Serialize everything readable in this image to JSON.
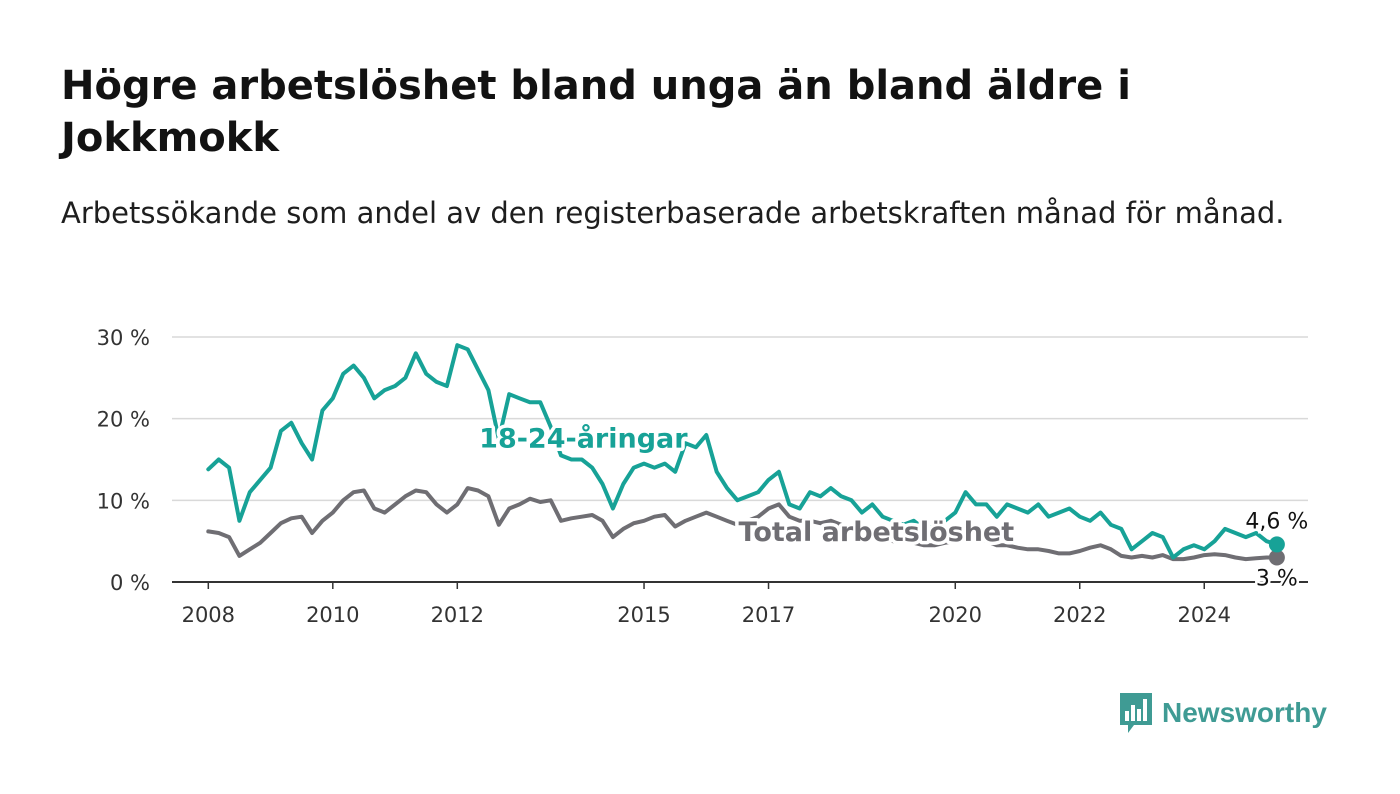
{
  "title": "Högre arbetslöshet bland unga än bland äldre i Jokkmokk",
  "subtitle": "Arbetssökande som andel av den registerbaserade arbetskraften månad för månad.",
  "brand": {
    "name": "Newsworthy",
    "color": "#3f9b94",
    "icon": "bar-chart-speech-bubble-icon"
  },
  "colors": {
    "youth": "#17a297",
    "total": "#6f6e73",
    "grid": "#d9d9d9",
    "axis": "#333333"
  },
  "chart_data": {
    "type": "line",
    "title": "Högre arbetslöshet bland unga än bland äldre i Jokkmokk",
    "subtitle": "Arbetssökande som andel av den registerbaserade arbetskraften månad för månad.",
    "xlabel": "",
    "ylabel": "",
    "x_ticks": [
      "2008",
      "2010",
      "2012",
      "2015",
      "2017",
      "2020",
      "2022",
      "2024"
    ],
    "y_ticks": [
      "0 %",
      "10 %",
      "20 %",
      "30 %"
    ],
    "ylim": [
      0,
      30
    ],
    "xlim": [
      "2007-06",
      "2025-09"
    ],
    "grid": true,
    "legend": "direct-labels",
    "series": [
      {
        "name": "18-24-åringar",
        "end_label": "4,6 %",
        "points": [
          [
            "2008-01",
            13.8
          ],
          [
            "2008-03",
            15.0
          ],
          [
            "2008-05",
            14.0
          ],
          [
            "2008-07",
            7.5
          ],
          [
            "2008-09",
            11.0
          ],
          [
            "2008-11",
            12.5
          ],
          [
            "2009-01",
            14.0
          ],
          [
            "2009-03",
            18.5
          ],
          [
            "2009-05",
            19.5
          ],
          [
            "2009-07",
            17.0
          ],
          [
            "2009-09",
            15.0
          ],
          [
            "2009-11",
            21.0
          ],
          [
            "2010-01",
            22.5
          ],
          [
            "2010-03",
            25.5
          ],
          [
            "2010-05",
            26.5
          ],
          [
            "2010-07",
            25.0
          ],
          [
            "2010-09",
            22.5
          ],
          [
            "2010-11",
            23.5
          ],
          [
            "2011-01",
            24.0
          ],
          [
            "2011-03",
            25.0
          ],
          [
            "2011-05",
            28.0
          ],
          [
            "2011-07",
            25.5
          ],
          [
            "2011-09",
            24.5
          ],
          [
            "2011-11",
            24.0
          ],
          [
            "2012-01",
            29.0
          ],
          [
            "2012-03",
            28.5
          ],
          [
            "2012-05",
            26.0
          ],
          [
            "2012-07",
            23.5
          ],
          [
            "2012-09",
            17.5
          ],
          [
            "2012-11",
            23.0
          ],
          [
            "2013-01",
            22.5
          ],
          [
            "2013-03",
            22.0
          ],
          [
            "2013-05",
            22.0
          ],
          [
            "2013-07",
            19.0
          ],
          [
            "2013-09",
            15.5
          ],
          [
            "2013-11",
            15.0
          ],
          [
            "2014-01",
            15.0
          ],
          [
            "2014-03",
            14.0
          ],
          [
            "2014-05",
            12.0
          ],
          [
            "2014-07",
            9.0
          ],
          [
            "2014-09",
            12.0
          ],
          [
            "2014-11",
            14.0
          ],
          [
            "2015-01",
            14.5
          ],
          [
            "2015-03",
            14.0
          ],
          [
            "2015-05",
            14.5
          ],
          [
            "2015-07",
            13.5
          ],
          [
            "2015-09",
            17.0
          ],
          [
            "2015-11",
            16.5
          ],
          [
            "2016-01",
            18.0
          ],
          [
            "2016-03",
            13.5
          ],
          [
            "2016-05",
            11.5
          ],
          [
            "2016-07",
            10.0
          ],
          [
            "2016-09",
            10.5
          ],
          [
            "2016-11",
            11.0
          ],
          [
            "2017-01",
            12.5
          ],
          [
            "2017-03",
            13.5
          ],
          [
            "2017-05",
            9.5
          ],
          [
            "2017-07",
            9.0
          ],
          [
            "2017-09",
            11.0
          ],
          [
            "2017-11",
            10.5
          ],
          [
            "2018-01",
            11.5
          ],
          [
            "2018-03",
            10.5
          ],
          [
            "2018-05",
            10.0
          ],
          [
            "2018-07",
            8.5
          ],
          [
            "2018-09",
            9.5
          ],
          [
            "2018-11",
            8.0
          ],
          [
            "2019-01",
            7.5
          ],
          [
            "2019-03",
            7.0
          ],
          [
            "2019-05",
            7.5
          ],
          [
            "2019-07",
            6.5
          ],
          [
            "2019-09",
            6.8
          ],
          [
            "2019-11",
            7.5
          ],
          [
            "2020-01",
            8.5
          ],
          [
            "2020-03",
            11.0
          ],
          [
            "2020-05",
            9.5
          ],
          [
            "2020-07",
            9.5
          ],
          [
            "2020-09",
            8.0
          ],
          [
            "2020-11",
            9.5
          ],
          [
            "2021-01",
            9.0
          ],
          [
            "2021-03",
            8.5
          ],
          [
            "2021-05",
            9.5
          ],
          [
            "2021-07",
            8.0
          ],
          [
            "2021-09",
            8.5
          ],
          [
            "2021-11",
            9.0
          ],
          [
            "2022-01",
            8.0
          ],
          [
            "2022-03",
            7.5
          ],
          [
            "2022-05",
            8.5
          ],
          [
            "2022-07",
            7.0
          ],
          [
            "2022-09",
            6.5
          ],
          [
            "2022-11",
            4.0
          ],
          [
            "2023-01",
            5.0
          ],
          [
            "2023-03",
            6.0
          ],
          [
            "2023-05",
            5.5
          ],
          [
            "2023-07",
            3.0
          ],
          [
            "2023-09",
            4.0
          ],
          [
            "2023-11",
            4.5
          ],
          [
            "2024-01",
            4.0
          ],
          [
            "2024-03",
            5.0
          ],
          [
            "2024-05",
            6.5
          ],
          [
            "2024-07",
            6.0
          ],
          [
            "2024-09",
            5.5
          ],
          [
            "2024-11",
            6.0
          ],
          [
            "2025-01",
            5.0
          ],
          [
            "2025-03",
            4.6
          ]
        ]
      },
      {
        "name": "Total arbetslöshet",
        "end_label": "3 %",
        "points": [
          [
            "2008-01",
            6.2
          ],
          [
            "2008-03",
            6.0
          ],
          [
            "2008-05",
            5.5
          ],
          [
            "2008-07",
            3.2
          ],
          [
            "2008-09",
            4.0
          ],
          [
            "2008-11",
            4.8
          ],
          [
            "2009-01",
            6.0
          ],
          [
            "2009-03",
            7.2
          ],
          [
            "2009-05",
            7.8
          ],
          [
            "2009-07",
            8.0
          ],
          [
            "2009-09",
            6.0
          ],
          [
            "2009-11",
            7.5
          ],
          [
            "2010-01",
            8.5
          ],
          [
            "2010-03",
            10.0
          ],
          [
            "2010-05",
            11.0
          ],
          [
            "2010-07",
            11.2
          ],
          [
            "2010-09",
            9.0
          ],
          [
            "2010-11",
            8.5
          ],
          [
            "2011-01",
            9.5
          ],
          [
            "2011-03",
            10.5
          ],
          [
            "2011-05",
            11.2
          ],
          [
            "2011-07",
            11.0
          ],
          [
            "2011-09",
            9.5
          ],
          [
            "2011-11",
            8.5
          ],
          [
            "2012-01",
            9.5
          ],
          [
            "2012-03",
            11.5
          ],
          [
            "2012-05",
            11.2
          ],
          [
            "2012-07",
            10.5
          ],
          [
            "2012-09",
            7.0
          ],
          [
            "2012-11",
            9.0
          ],
          [
            "2013-01",
            9.5
          ],
          [
            "2013-03",
            10.2
          ],
          [
            "2013-05",
            9.8
          ],
          [
            "2013-07",
            10.0
          ],
          [
            "2013-09",
            7.5
          ],
          [
            "2013-11",
            7.8
          ],
          [
            "2014-01",
            8.0
          ],
          [
            "2014-03",
            8.2
          ],
          [
            "2014-05",
            7.5
          ],
          [
            "2014-07",
            5.5
          ],
          [
            "2014-09",
            6.5
          ],
          [
            "2014-11",
            7.2
          ],
          [
            "2015-01",
            7.5
          ],
          [
            "2015-03",
            8.0
          ],
          [
            "2015-05",
            8.2
          ],
          [
            "2015-07",
            6.8
          ],
          [
            "2015-09",
            7.5
          ],
          [
            "2015-11",
            8.0
          ],
          [
            "2016-01",
            8.5
          ],
          [
            "2016-03",
            8.0
          ],
          [
            "2016-05",
            7.5
          ],
          [
            "2016-07",
            7.0
          ],
          [
            "2016-09",
            7.5
          ],
          [
            "2016-11",
            8.0
          ],
          [
            "2017-01",
            9.0
          ],
          [
            "2017-03",
            9.5
          ],
          [
            "2017-05",
            8.0
          ],
          [
            "2017-07",
            7.5
          ],
          [
            "2017-09",
            7.5
          ],
          [
            "2017-11",
            7.2
          ],
          [
            "2018-01",
            7.5
          ],
          [
            "2018-03",
            7.0
          ],
          [
            "2018-05",
            6.5
          ],
          [
            "2018-07",
            6.0
          ],
          [
            "2018-09",
            5.5
          ],
          [
            "2018-11",
            5.5
          ],
          [
            "2019-01",
            5.0
          ],
          [
            "2019-03",
            5.0
          ],
          [
            "2019-05",
            4.8
          ],
          [
            "2019-07",
            4.5
          ],
          [
            "2019-09",
            4.5
          ],
          [
            "2019-11",
            4.8
          ],
          [
            "2020-01",
            5.0
          ],
          [
            "2020-03",
            5.5
          ],
          [
            "2020-05",
            5.5
          ],
          [
            "2020-07",
            5.0
          ],
          [
            "2020-09",
            4.5
          ],
          [
            "2020-11",
            4.5
          ],
          [
            "2021-01",
            4.2
          ],
          [
            "2021-03",
            4.0
          ],
          [
            "2021-05",
            4.0
          ],
          [
            "2021-07",
            3.8
          ],
          [
            "2021-09",
            3.5
          ],
          [
            "2021-11",
            3.5
          ],
          [
            "2022-01",
            3.8
          ],
          [
            "2022-03",
            4.2
          ],
          [
            "2022-05",
            4.5
          ],
          [
            "2022-07",
            4.0
          ],
          [
            "2022-09",
            3.2
          ],
          [
            "2022-11",
            3.0
          ],
          [
            "2023-01",
            3.2
          ],
          [
            "2023-03",
            3.0
          ],
          [
            "2023-05",
            3.3
          ],
          [
            "2023-07",
            2.8
          ],
          [
            "2023-09",
            2.8
          ],
          [
            "2023-11",
            3.0
          ],
          [
            "2024-01",
            3.3
          ],
          [
            "2024-03",
            3.4
          ],
          [
            "2024-05",
            3.3
          ],
          [
            "2024-07",
            3.0
          ],
          [
            "2024-09",
            2.8
          ],
          [
            "2024-11",
            2.9
          ],
          [
            "2025-01",
            3.0
          ],
          [
            "2025-03",
            3.0
          ]
        ]
      }
    ]
  }
}
